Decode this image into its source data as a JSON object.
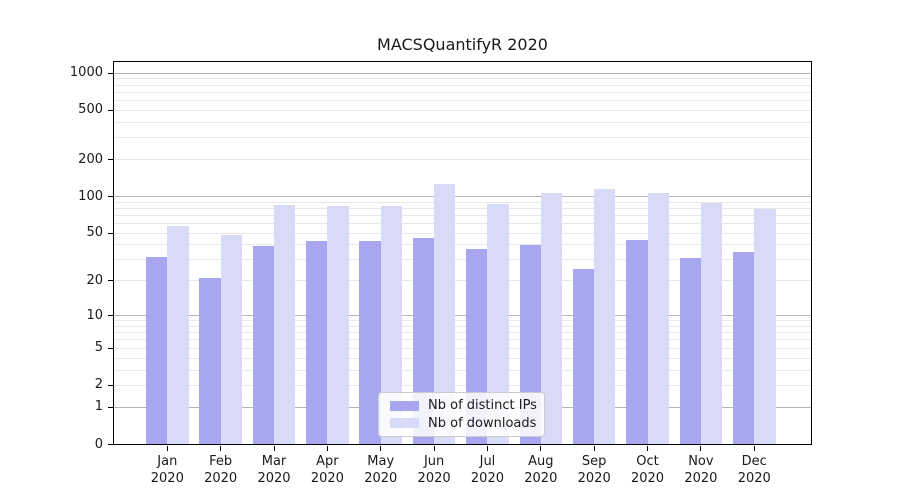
{
  "title": "MACSQuantifyR 2020",
  "colors": {
    "series_ips": "#a7a7f0",
    "series_downloads": "#d9d9f8",
    "grid_major": "#b3b3b3",
    "grid_minor": "#e7e7e7",
    "axis": "#000000",
    "text": "#1a1a1a",
    "legend_border": "#cccccc",
    "background": "#ffffff"
  },
  "chart_data": {
    "type": "bar",
    "title": "MACSQuantifyR 2020",
    "categories": [
      "Jan 2020",
      "Feb 2020",
      "Mar 2020",
      "Apr 2020",
      "May 2020",
      "Jun 2020",
      "Jul 2020",
      "Aug 2020",
      "Sep 2020",
      "Oct 2020",
      "Nov 2020",
      "Dec 2020"
    ],
    "series": [
      {
        "name": "Nb of distinct IPs",
        "color_key": "series_ips",
        "values": [
          32,
          21,
          39,
          43,
          43,
          46,
          37,
          40,
          25,
          44,
          31,
          35
        ]
      },
      {
        "name": "Nb of downloads",
        "color_key": "series_downloads",
        "values": [
          57,
          48,
          86,
          83,
          84,
          126,
          87,
          107,
          115,
          106,
          88,
          79
        ]
      }
    ],
    "yscale": "log1p",
    "y_ticks": [
      0,
      1,
      2,
      5,
      10,
      20,
      50,
      100,
      200,
      500,
      1000
    ],
    "ylim": [
      0,
      1240
    ],
    "xlabel": "",
    "ylabel": "",
    "grid": "horizontal; light minor lines at 2-9 per decade, darker lines at powers of 10",
    "legend_position": "lower center"
  }
}
